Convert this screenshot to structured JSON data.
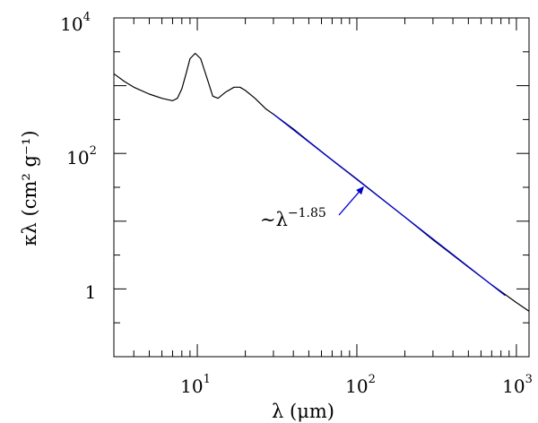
{
  "chart_data": {
    "type": "line",
    "title": "",
    "xlabel": "λ (μm)",
    "ylabel": "κλ (cm² g⁻¹)",
    "xscale": "log",
    "yscale": "log",
    "xlim": [
      3,
      1200
    ],
    "ylim": [
      0.1,
      10000
    ],
    "grid": false,
    "x_ticks": [
      {
        "value": 10,
        "base": "10",
        "exp": "1"
      },
      {
        "value": 100,
        "base": "10",
        "exp": "2"
      },
      {
        "value": 1000,
        "base": "10",
        "exp": "3"
      }
    ],
    "y_ticks": [
      {
        "value": 1,
        "base": "1",
        "exp": ""
      },
      {
        "value": 100,
        "base": "10",
        "exp": "2"
      },
      {
        "value": 10000,
        "base": "10",
        "exp": "4"
      }
    ],
    "series": [
      {
        "color": "#000000",
        "x": [
          3,
          3.5,
          4,
          5,
          6,
          7,
          7.5,
          8,
          8.5,
          9,
          9.7,
          10.5,
          11.5,
          12.5,
          13.5,
          15,
          17,
          18.5,
          20,
          23,
          27,
          30,
          40,
          50,
          70,
          100,
          200,
          300,
          500,
          700,
          1000,
          1200
        ],
        "y": [
          1500,
          1150,
          950,
          750,
          650,
          600,
          650,
          900,
          1500,
          2500,
          3000,
          2500,
          1300,
          700,
          650,
          800,
          950,
          950,
          850,
          650,
          450,
          380,
          230,
          150,
          80,
          42,
          11.5,
          5.3,
          2.1,
          1.15,
          0.63,
          0.47
        ]
      },
      {
        "color": "#0000cc",
        "x": [
          30,
          850
        ],
        "y": [
          380,
          0.8
        ]
      }
    ],
    "annotation": {
      "prefix": "∼λ",
      "exponent": "−1.85",
      "color": "#0000cc",
      "arrow_target": {
        "x": 110,
        "y": 32
      }
    }
  }
}
